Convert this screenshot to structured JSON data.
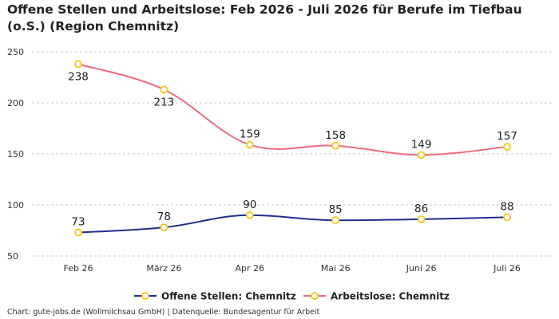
{
  "chart_data": {
    "type": "line",
    "title": "Offene Stellen und Arbeitslose: Feb 2026 - Juli 2026 für Berufe im Tiefbau (o.S.) (Region Chemnitz)",
    "categories": [
      "Feb 26",
      "März 26",
      "Apr 26",
      "Mai 26",
      "Juni 26",
      "Juli 26"
    ],
    "series": [
      {
        "name": "Offene Stellen: Chemnitz",
        "values": [
          73,
          78,
          90,
          85,
          86,
          88
        ],
        "color": "#1f2f8c"
      },
      {
        "name": "Arbeitslose: Chemnitz",
        "values": [
          238,
          213,
          159,
          158,
          149,
          157
        ],
        "color": "#f06b7e"
      }
    ],
    "marker_color": "#f5c518",
    "ylim": [
      50,
      250
    ],
    "yticks": [
      "50",
      "100",
      "150",
      "200",
      "250"
    ],
    "grid": true,
    "legend": "bottom"
  },
  "footer": "Chart: gute-jobs.de (Wollmilchsau GmbH) | Datenquelle: Bundesagentur für Arbeit"
}
